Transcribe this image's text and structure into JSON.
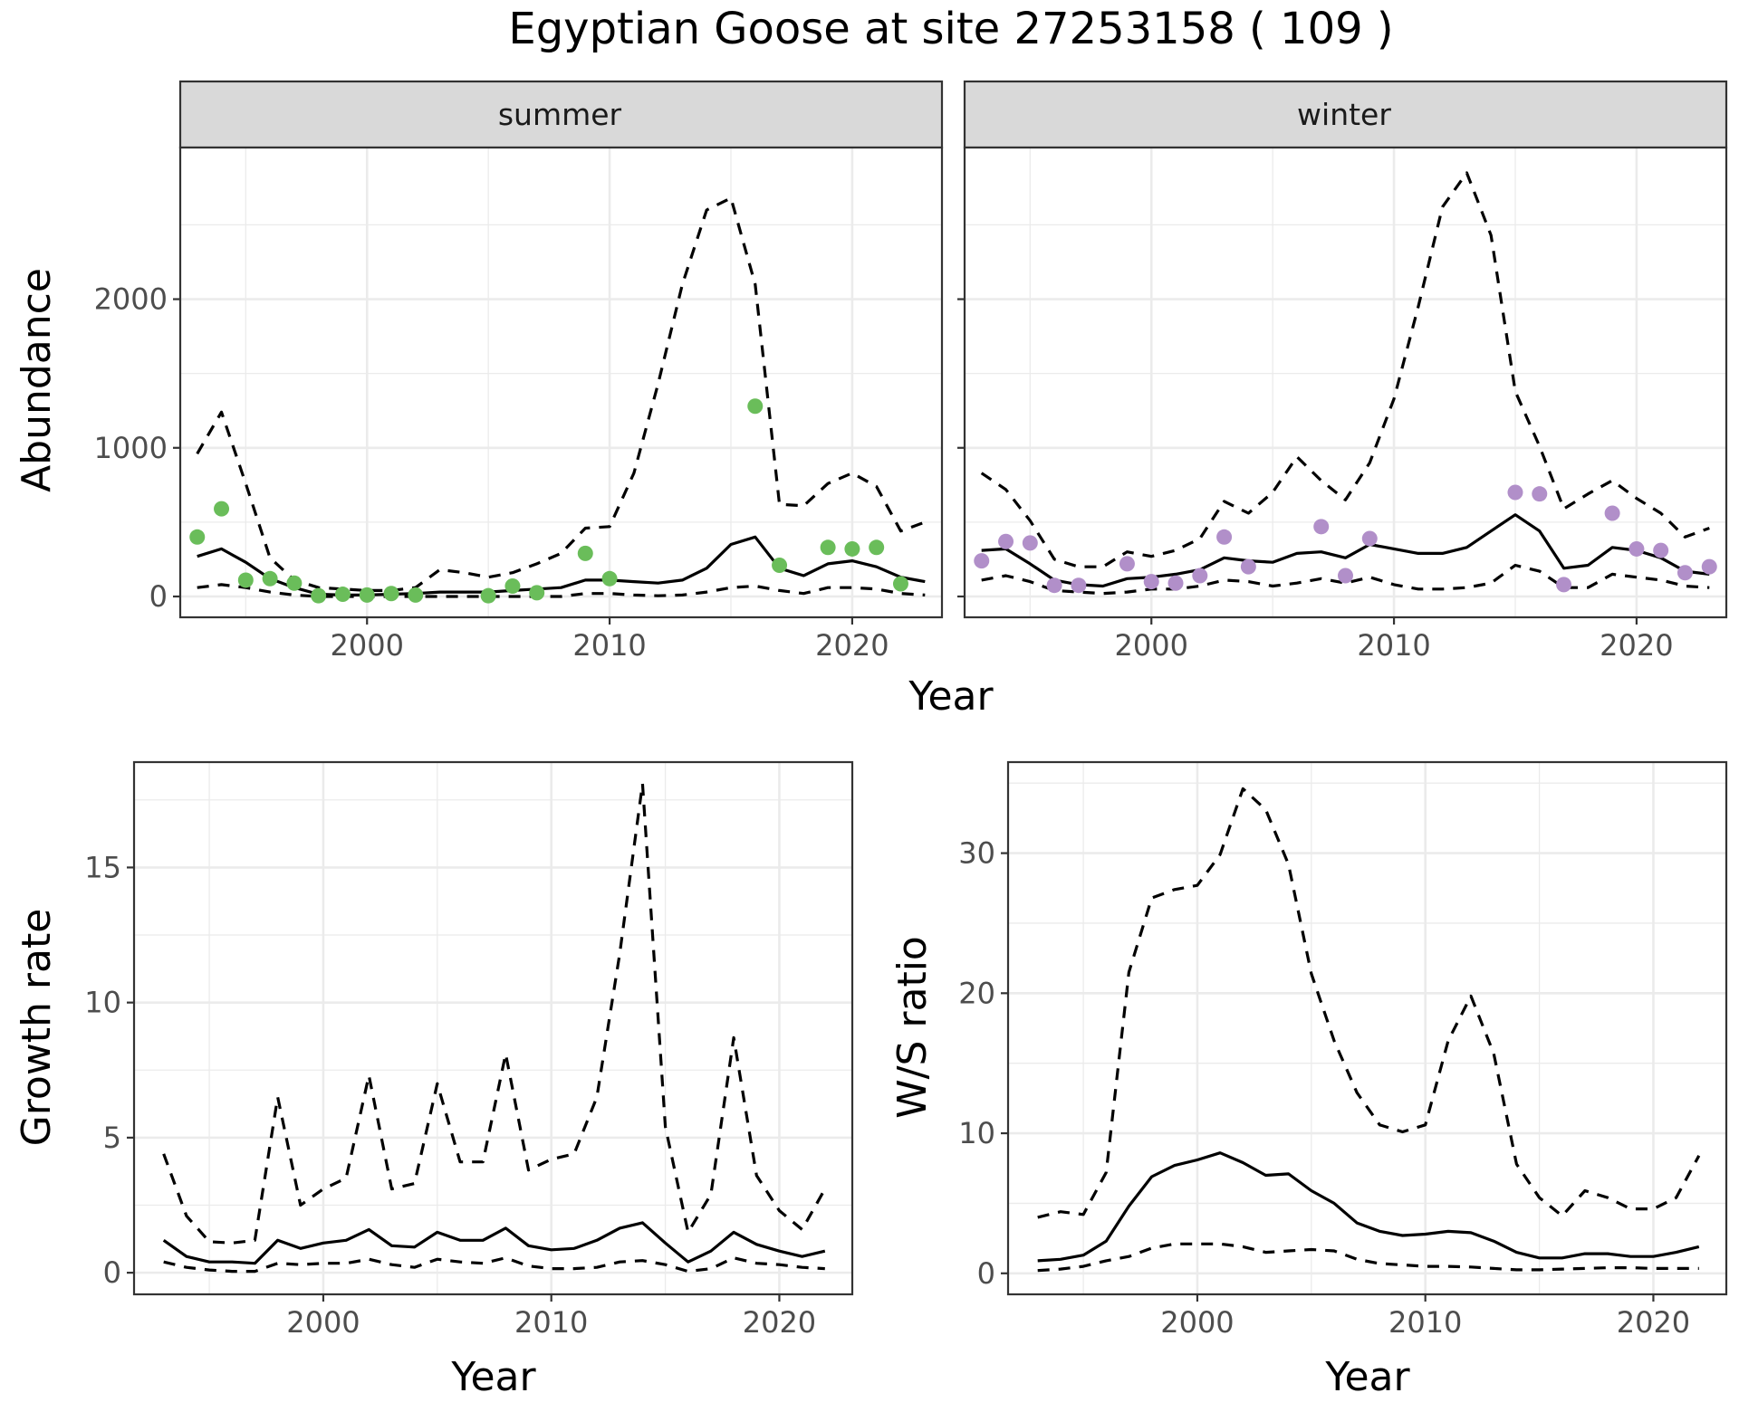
{
  "title": "Egyptian Goose at site 27253158 ( 109 )",
  "colors": {
    "summer_points": "#6abd5a",
    "winter_points": "#b18fc9",
    "lines": "#000000"
  },
  "chart_data": [
    {
      "type": "line",
      "panel": "summer",
      "strip_label": "summer",
      "ylabel": "Abundance",
      "xlabel": "",
      "x_ticks": [
        2000,
        2010,
        2020
      ],
      "y_ticks": [
        0,
        1000,
        2000
      ],
      "xlim": [
        1992.3,
        2023.7
      ],
      "ylim": [
        -140,
        3020
      ],
      "grid": true,
      "x": [
        1993,
        1994,
        1995,
        1996,
        1997,
        1998,
        1999,
        2000,
        2001,
        2002,
        2003,
        2004,
        2005,
        2006,
        2007,
        2008,
        2009,
        2010,
        2011,
        2012,
        2013,
        2014,
        2015,
        2016,
        2017,
        2018,
        2019,
        2020,
        2021,
        2022,
        2023
      ],
      "series": [
        {
          "style": "solid",
          "values": [
            270,
            320,
            230,
            120,
            60,
            15,
            10,
            10,
            15,
            20,
            30,
            30,
            30,
            40,
            50,
            60,
            110,
            110,
            100,
            90,
            110,
            190,
            350,
            400,
            190,
            140,
            220,
            240,
            200,
            130,
            100
          ]
        },
        {
          "style": "dashed",
          "values": [
            960,
            1240,
            760,
            260,
            110,
            60,
            50,
            40,
            40,
            60,
            180,
            160,
            130,
            160,
            220,
            290,
            460,
            470,
            830,
            1430,
            2100,
            2600,
            2680,
            2100,
            620,
            610,
            760,
            830,
            740,
            440,
            500
          ]
        },
        {
          "style": "dashed",
          "values": [
            60,
            80,
            60,
            30,
            10,
            0,
            0,
            0,
            0,
            0,
            0,
            0,
            0,
            0,
            0,
            0,
            20,
            20,
            10,
            5,
            10,
            30,
            60,
            70,
            40,
            20,
            60,
            60,
            50,
            20,
            10
          ]
        }
      ],
      "points": [
        {
          "x": 1993,
          "y": 400
        },
        {
          "x": 1994,
          "y": 590
        },
        {
          "x": 1995,
          "y": 110
        },
        {
          "x": 1996,
          "y": 120
        },
        {
          "x": 1997,
          "y": 90
        },
        {
          "x": 1998,
          "y": 5
        },
        {
          "x": 1999,
          "y": 15
        },
        {
          "x": 2000,
          "y": 10
        },
        {
          "x": 2001,
          "y": 20
        },
        {
          "x": 2002,
          "y": 10
        },
        {
          "x": 2005,
          "y": 5
        },
        {
          "x": 2006,
          "y": 70
        },
        {
          "x": 2007,
          "y": 25
        },
        {
          "x": 2009,
          "y": 290
        },
        {
          "x": 2010,
          "y": 120
        },
        {
          "x": 2016,
          "y": 1280
        },
        {
          "x": 2017,
          "y": 210
        },
        {
          "x": 2019,
          "y": 330
        },
        {
          "x": 2020,
          "y": 320
        },
        {
          "x": 2021,
          "y": 330
        },
        {
          "x": 2022,
          "y": 85
        }
      ]
    },
    {
      "type": "line",
      "panel": "winter",
      "strip_label": "winter",
      "ylabel": "",
      "xlabel": "",
      "x_ticks": [
        2000,
        2010,
        2020
      ],
      "y_ticks": [
        0,
        1000,
        2000
      ],
      "xlim": [
        1992.3,
        2023.7
      ],
      "ylim": [
        -140,
        3020
      ],
      "grid": true,
      "x": [
        1993,
        1994,
        1995,
        1996,
        1997,
        1998,
        1999,
        2000,
        2001,
        2002,
        2003,
        2004,
        2005,
        2006,
        2007,
        2008,
        2009,
        2010,
        2011,
        2012,
        2013,
        2014,
        2015,
        2016,
        2017,
        2018,
        2019,
        2020,
        2021,
        2022,
        2023
      ],
      "series": [
        {
          "style": "solid",
          "values": [
            310,
            320,
            220,
            110,
            80,
            70,
            120,
            130,
            150,
            180,
            260,
            240,
            230,
            290,
            300,
            260,
            350,
            320,
            290,
            290,
            330,
            440,
            550,
            440,
            190,
            210,
            330,
            310,
            260,
            170,
            150
          ]
        },
        {
          "style": "dashed",
          "values": [
            830,
            720,
            510,
            250,
            200,
            200,
            300,
            270,
            310,
            390,
            640,
            560,
            700,
            940,
            780,
            650,
            900,
            1330,
            1950,
            2620,
            2850,
            2430,
            1380,
            1010,
            590,
            690,
            780,
            660,
            560,
            400,
            460
          ]
        },
        {
          "style": "dashed",
          "values": [
            110,
            140,
            100,
            40,
            30,
            20,
            30,
            50,
            50,
            70,
            110,
            100,
            70,
            90,
            120,
            90,
            130,
            80,
            50,
            50,
            60,
            90,
            210,
            170,
            60,
            60,
            150,
            130,
            110,
            70,
            60
          ]
        }
      ],
      "points": [
        {
          "x": 1993,
          "y": 240
        },
        {
          "x": 1994,
          "y": 370
        },
        {
          "x": 1995,
          "y": 360
        },
        {
          "x": 1996,
          "y": 75
        },
        {
          "x": 1997,
          "y": 75
        },
        {
          "x": 1999,
          "y": 220
        },
        {
          "x": 2000,
          "y": 100
        },
        {
          "x": 2001,
          "y": 90
        },
        {
          "x": 2002,
          "y": 140
        },
        {
          "x": 2003,
          "y": 400
        },
        {
          "x": 2004,
          "y": 200
        },
        {
          "x": 2007,
          "y": 470
        },
        {
          "x": 2008,
          "y": 140
        },
        {
          "x": 2009,
          "y": 390
        },
        {
          "x": 2015,
          "y": 700
        },
        {
          "x": 2016,
          "y": 690
        },
        {
          "x": 2017,
          "y": 80
        },
        {
          "x": 2019,
          "y": 560
        },
        {
          "x": 2020,
          "y": 320
        },
        {
          "x": 2021,
          "y": 310
        },
        {
          "x": 2022,
          "y": 160
        },
        {
          "x": 2023,
          "y": 200
        }
      ]
    },
    {
      "type": "line",
      "panel": "growth",
      "ylabel": "Growth rate",
      "xlabel": "Year",
      "x_ticks": [
        2000,
        2010,
        2020
      ],
      "y_ticks": [
        0,
        5,
        10,
        15
      ],
      "xlim": [
        1991.7,
        2023.2
      ],
      "ylim": [
        -0.8,
        18.9
      ],
      "grid": true,
      "x": [
        1993,
        1994,
        1995,
        1996,
        1997,
        1998,
        1999,
        2000,
        2001,
        2002,
        2003,
        2004,
        2005,
        2006,
        2007,
        2008,
        2009,
        2010,
        2011,
        2012,
        2013,
        2014,
        2015,
        2016,
        2017,
        2018,
        2019,
        2020,
        2021,
        2022
      ],
      "series": [
        {
          "style": "solid",
          "values": [
            1.2,
            0.6,
            0.4,
            0.4,
            0.35,
            1.2,
            0.9,
            1.1,
            1.2,
            1.6,
            1.0,
            0.95,
            1.5,
            1.2,
            1.2,
            1.65,
            1.0,
            0.85,
            0.9,
            1.2,
            1.65,
            1.85,
            1.1,
            0.4,
            0.8,
            1.5,
            1.05,
            0.8,
            0.6,
            0.8
          ]
        },
        {
          "style": "dashed",
          "values": [
            4.4,
            2.1,
            1.15,
            1.1,
            1.2,
            6.5,
            2.5,
            3.1,
            3.5,
            7.3,
            3.1,
            3.3,
            7.0,
            4.1,
            4.1,
            8.1,
            3.8,
            4.2,
            4.4,
            6.5,
            11.8,
            18.1,
            5.4,
            1.5,
            2.9,
            8.7,
            3.6,
            2.3,
            1.6,
            3.1
          ]
        },
        {
          "style": "dashed",
          "values": [
            0.4,
            0.2,
            0.1,
            0.05,
            0.05,
            0.35,
            0.3,
            0.35,
            0.35,
            0.5,
            0.3,
            0.2,
            0.5,
            0.4,
            0.35,
            0.55,
            0.25,
            0.15,
            0.15,
            0.2,
            0.4,
            0.45,
            0.3,
            0.05,
            0.15,
            0.55,
            0.35,
            0.3,
            0.2,
            0.15
          ]
        }
      ]
    },
    {
      "type": "line",
      "panel": "ws_ratio",
      "ylabel": "W/S ratio",
      "xlabel": "Year",
      "x_ticks": [
        2000,
        2010,
        2020
      ],
      "y_ticks": [
        0,
        10,
        20,
        30
      ],
      "xlim": [
        1991.7,
        2023.2
      ],
      "ylim": [
        -1.5,
        36.5
      ],
      "grid": true,
      "x": [
        1993,
        1994,
        1995,
        1996,
        1997,
        1998,
        1999,
        2000,
        2001,
        2002,
        2003,
        2004,
        2005,
        2006,
        2007,
        2008,
        2009,
        2010,
        2011,
        2012,
        2013,
        2014,
        2015,
        2016,
        2017,
        2018,
        2019,
        2020,
        2021,
        2022
      ],
      "series": [
        {
          "style": "solid",
          "values": [
            0.9,
            1.0,
            1.3,
            2.3,
            4.8,
            6.9,
            7.7,
            8.1,
            8.6,
            7.9,
            7.0,
            7.1,
            5.9,
            5.0,
            3.6,
            3.0,
            2.7,
            2.8,
            3.0,
            2.9,
            2.3,
            1.5,
            1.1,
            1.1,
            1.4,
            1.4,
            1.2,
            1.2,
            1.5,
            1.9
          ]
        },
        {
          "style": "dashed",
          "values": [
            4.0,
            4.4,
            4.2,
            7.2,
            21.5,
            26.8,
            27.4,
            27.7,
            29.9,
            34.6,
            33.1,
            29.2,
            21.4,
            16.6,
            12.9,
            10.6,
            10.1,
            10.6,
            16.6,
            19.8,
            15.7,
            7.8,
            5.4,
            4.1,
            5.9,
            5.4,
            4.6,
            4.6,
            5.4,
            8.4
          ]
        },
        {
          "style": "dashed",
          "values": [
            0.2,
            0.3,
            0.5,
            0.9,
            1.2,
            1.8,
            2.1,
            2.1,
            2.1,
            1.9,
            1.5,
            1.6,
            1.7,
            1.6,
            1.0,
            0.7,
            0.6,
            0.5,
            0.5,
            0.45,
            0.35,
            0.25,
            0.25,
            0.3,
            0.35,
            0.4,
            0.4,
            0.35,
            0.35,
            0.35
          ]
        }
      ]
    }
  ],
  "labels": {
    "shared_x_title": "Year",
    "strip_summer": "summer",
    "strip_winter": "winter",
    "y_abundance": "Abundance",
    "y_growth": "Growth rate",
    "y_ratio": "W/S ratio",
    "x_growth": "Year",
    "x_ratio": "Year"
  }
}
